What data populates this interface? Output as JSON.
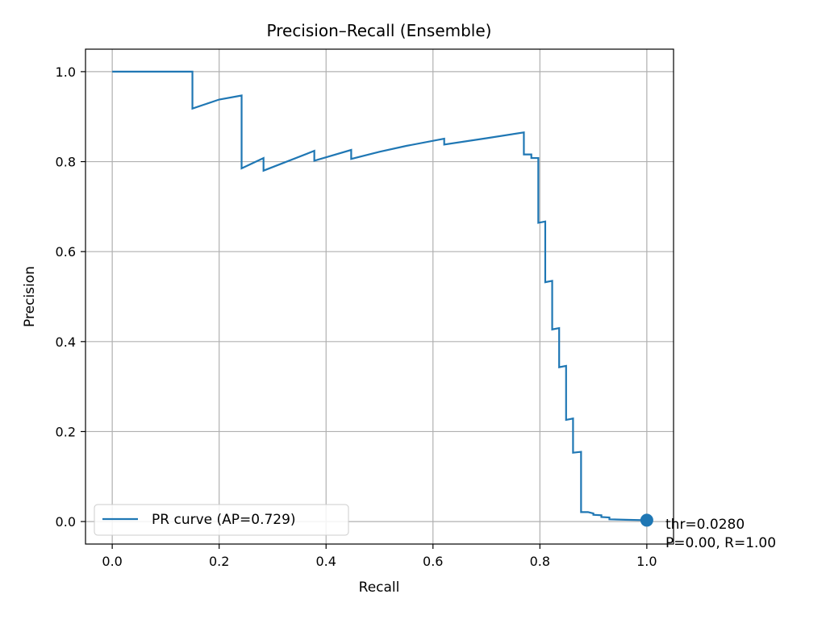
{
  "chart_data": {
    "type": "line",
    "title": "Precision–Recall (Ensemble)",
    "xlabel": "Recall",
    "ylabel": "Precision",
    "xlim": [
      -0.05,
      1.05
    ],
    "ylim": [
      -0.05,
      1.05
    ],
    "xticks": [
      0.0,
      0.2,
      0.4,
      0.6,
      0.8,
      1.0
    ],
    "xtick_labels": [
      "0.0",
      "0.2",
      "0.4",
      "0.6",
      "0.8",
      "1.0"
    ],
    "yticks": [
      0.0,
      0.2,
      0.4,
      0.6,
      0.8,
      1.0
    ],
    "ytick_labels": [
      "0.0",
      "0.2",
      "0.4",
      "0.6",
      "0.8",
      "1.0"
    ],
    "grid": true,
    "legend_position": "lower-left",
    "series": [
      {
        "name": "PR curve (AP=0.729)",
        "color": "#1f77b4",
        "step": true,
        "points": [
          [
            0.0,
            1.0
          ],
          [
            0.15,
            1.0
          ],
          [
            0.15,
            0.918
          ],
          [
            0.2,
            0.938
          ],
          [
            0.242,
            0.947
          ],
          [
            0.242,
            0.785
          ],
          [
            0.283,
            0.808
          ],
          [
            0.283,
            0.78
          ],
          [
            0.378,
            0.824
          ],
          [
            0.378,
            0.802
          ],
          [
            0.447,
            0.826
          ],
          [
            0.447,
            0.806
          ],
          [
            0.5,
            0.822
          ],
          [
            0.55,
            0.835
          ],
          [
            0.621,
            0.851
          ],
          [
            0.621,
            0.838
          ],
          [
            0.7,
            0.852
          ],
          [
            0.77,
            0.865
          ],
          [
            0.77,
            0.816
          ],
          [
            0.784,
            0.816
          ],
          [
            0.784,
            0.808
          ],
          [
            0.797,
            0.808
          ],
          [
            0.797,
            0.664
          ],
          [
            0.81,
            0.667
          ],
          [
            0.81,
            0.532
          ],
          [
            0.823,
            0.535
          ],
          [
            0.823,
            0.427
          ],
          [
            0.836,
            0.43
          ],
          [
            0.836,
            0.343
          ],
          [
            0.849,
            0.346
          ],
          [
            0.849,
            0.226
          ],
          [
            0.862,
            0.229
          ],
          [
            0.862,
            0.153
          ],
          [
            0.877,
            0.155
          ],
          [
            0.877,
            0.021
          ],
          [
            0.89,
            0.021
          ],
          [
            0.9,
            0.018
          ],
          [
            0.9,
            0.015
          ],
          [
            0.915,
            0.014
          ],
          [
            0.915,
            0.01
          ],
          [
            0.93,
            0.009
          ],
          [
            0.93,
            0.005
          ],
          [
            0.96,
            0.004
          ],
          [
            1.0,
            0.003
          ]
        ]
      }
    ],
    "marker": {
      "x": 1.0,
      "y": 0.003,
      "color": "#1f77b4"
    },
    "annotation": {
      "line1": "thr=0.0280",
      "line2": "P=0.00, R=1.00"
    }
  }
}
